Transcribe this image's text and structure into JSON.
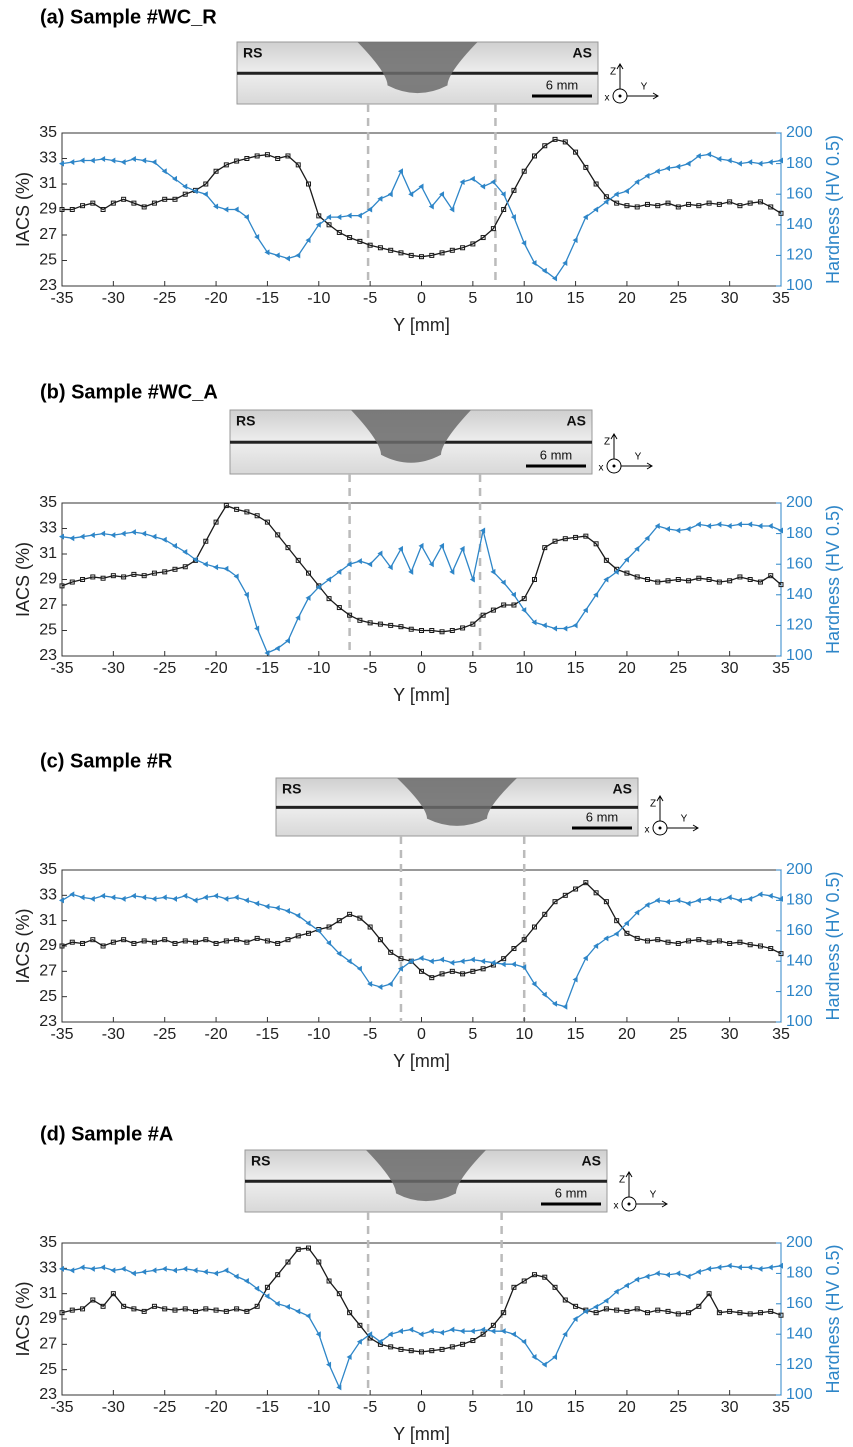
{
  "chart_data": [
    {
      "type": "line",
      "title": "(a) Sample #WC_R",
      "image_labels": {
        "left": "RS",
        "right": "AS",
        "scale": "6 mm",
        "z": "Z",
        "y": "Y",
        "x": "x"
      },
      "xlabel": "Y [mm]",
      "ylabel": "IACS (%)",
      "y2label": "Hardness (HV 0.5)",
      "xlim": [
        -35,
        35
      ],
      "xticks": [
        -35,
        -30,
        -25,
        -20,
        -15,
        -10,
        -5,
        0,
        5,
        10,
        15,
        20,
        25,
        30,
        35
      ],
      "ylim": [
        23,
        35
      ],
      "yticks": [
        23,
        25,
        27,
        29,
        31,
        33,
        35
      ],
      "y2lim": [
        100,
        200
      ],
      "y2ticks": [
        100,
        120,
        140,
        160,
        180,
        200
      ],
      "vlines": [
        -5.2,
        7.2
      ],
      "x": [
        -35,
        -34,
        -33,
        -32,
        -31,
        -30,
        -29,
        -28,
        -27,
        -26,
        -25,
        -24,
        -23,
        -22,
        -21,
        -20,
        -19,
        -18,
        -17,
        -16,
        -15,
        -14,
        -13,
        -12,
        -11,
        -10,
        -9,
        -8,
        -7,
        -6,
        -5,
        -4,
        -3,
        -2,
        -1,
        0,
        1,
        2,
        3,
        4,
        5,
        6,
        7,
        8,
        9,
        10,
        11,
        12,
        13,
        14,
        15,
        16,
        17,
        18,
        19,
        20,
        21,
        22,
        23,
        24,
        25,
        26,
        27,
        28,
        29,
        30,
        31,
        32,
        33,
        34,
        35
      ],
      "series": [
        {
          "color": "#1a1a1a",
          "marker": "square",
          "values": [
            29,
            29,
            29.3,
            29.5,
            29,
            29.5,
            29.8,
            29.5,
            29.2,
            29.5,
            29.8,
            29.8,
            30.2,
            30.5,
            31,
            32,
            32.5,
            32.8,
            33,
            33.2,
            33.3,
            33,
            33.2,
            32.5,
            31,
            28.5,
            27.8,
            27.2,
            26.8,
            26.5,
            26.2,
            26,
            25.8,
            25.6,
            25.4,
            25.3,
            25.4,
            25.6,
            25.8,
            26,
            26.3,
            26.8,
            27.5,
            29,
            30.5,
            32,
            33.2,
            34,
            34.5,
            34.3,
            33.5,
            32.3,
            31,
            30,
            29.5,
            29.3,
            29.2,
            29.4,
            29.3,
            29.5,
            29.2,
            29.4,
            29.3,
            29.5,
            29.4,
            29.6,
            29.3,
            29.5,
            29.6,
            29.2,
            28.7
          ]
        },
        {
          "color": "#2e86c8",
          "marker": "triangle",
          "axis": "y2",
          "values": [
            180,
            181,
            182,
            182,
            183,
            182,
            181,
            183,
            182,
            181,
            175,
            170,
            165,
            162,
            160,
            152,
            150,
            150,
            145,
            132,
            122,
            120,
            118,
            120,
            130,
            140,
            145,
            145,
            146,
            146,
            150,
            157,
            160,
            175,
            160,
            165,
            152,
            160,
            150,
            168,
            170,
            165,
            168,
            160,
            145,
            128,
            115,
            110,
            105,
            115,
            130,
            145,
            150,
            155,
            160,
            162,
            168,
            172,
            175,
            177,
            178,
            180,
            185,
            186,
            183,
            182,
            180,
            181,
            180,
            181,
            182
          ]
        }
      ]
    },
    {
      "type": "line",
      "title": "(b) Sample #WC_A",
      "image_labels": {
        "left": "RS",
        "right": "AS",
        "scale": "6 mm",
        "z": "Z",
        "y": "Y",
        "x": "x"
      },
      "xlabel": "Y [mm]",
      "ylabel": "IACS (%)",
      "y2label": "Hardness (HV 0.5)",
      "xlim": [
        -35,
        35
      ],
      "xticks": [
        -35,
        -30,
        -25,
        -20,
        -15,
        -10,
        -5,
        0,
        5,
        10,
        15,
        20,
        25,
        30,
        35
      ],
      "ylim": [
        23,
        35
      ],
      "yticks": [
        23,
        25,
        27,
        29,
        31,
        33,
        35
      ],
      "y2lim": [
        100,
        200
      ],
      "y2ticks": [
        100,
        120,
        140,
        160,
        180,
        200
      ],
      "vlines": [
        -7,
        5.7
      ],
      "x": [
        -35,
        -34,
        -33,
        -32,
        -31,
        -30,
        -29,
        -28,
        -27,
        -26,
        -25,
        -24,
        -23,
        -22,
        -21,
        -20,
        -19,
        -18,
        -17,
        -16,
        -15,
        -14,
        -13,
        -12,
        -11,
        -10,
        -9,
        -8,
        -7,
        -6,
        -5,
        -4,
        -3,
        -2,
        -1,
        0,
        1,
        2,
        3,
        4,
        5,
        6,
        7,
        8,
        9,
        10,
        11,
        12,
        13,
        14,
        15,
        16,
        17,
        18,
        19,
        20,
        21,
        22,
        23,
        24,
        25,
        26,
        27,
        28,
        29,
        30,
        31,
        32,
        33,
        34,
        35
      ],
      "series": [
        {
          "color": "#1a1a1a",
          "marker": "square",
          "values": [
            28.5,
            28.8,
            29,
            29.2,
            29.1,
            29.3,
            29.2,
            29.4,
            29.3,
            29.5,
            29.6,
            29.8,
            30,
            30.5,
            32,
            33.5,
            34.8,
            34.5,
            34.3,
            34,
            33.5,
            32.5,
            31.5,
            30.5,
            29.5,
            28.5,
            27.5,
            26.8,
            26.2,
            25.8,
            25.6,
            25.5,
            25.4,
            25.3,
            25.1,
            25,
            25,
            24.9,
            25,
            25.2,
            25.5,
            26.2,
            26.6,
            27,
            27,
            27.5,
            29,
            31.5,
            32,
            32.2,
            32.3,
            32.4,
            31.8,
            30.5,
            29.8,
            29.5,
            29.2,
            29,
            28.8,
            28.9,
            29,
            28.9,
            29.1,
            29,
            28.8,
            28.9,
            29.2,
            29,
            28.8,
            29.3,
            28.6
          ]
        },
        {
          "color": "#2e86c8",
          "marker": "triangle",
          "axis": "y2",
          "values": [
            178,
            177,
            178,
            179,
            180,
            179,
            180,
            181,
            180,
            178,
            176,
            172,
            168,
            163,
            160,
            158,
            157,
            152,
            140,
            118,
            102,
            105,
            110,
            125,
            138,
            145,
            150,
            155,
            160,
            162,
            160,
            167,
            158,
            170,
            155,
            172,
            160,
            172,
            155,
            170,
            150,
            182,
            155,
            148,
            140,
            130,
            122,
            120,
            118,
            118,
            120,
            130,
            140,
            150,
            155,
            163,
            170,
            177,
            185,
            183,
            182,
            183,
            186,
            185,
            186,
            185,
            186,
            186,
            185,
            185,
            182
          ]
        }
      ]
    },
    {
      "type": "line",
      "title": "(c) Sample #R",
      "image_labels": {
        "left": "RS",
        "right": "AS",
        "scale": "6 mm",
        "z": "Z",
        "y": "Y",
        "x": "x"
      },
      "xlabel": "Y [mm]",
      "ylabel": "IACS (%)",
      "y2label": "Hardness (HV 0.5)",
      "xlim": [
        -35,
        35
      ],
      "xticks": [
        -35,
        -30,
        -25,
        -20,
        -15,
        -10,
        -5,
        0,
        5,
        10,
        15,
        20,
        25,
        30,
        35
      ],
      "ylim": [
        23,
        35
      ],
      "yticks": [
        23,
        25,
        27,
        29,
        31,
        33,
        35
      ],
      "y2lim": [
        100,
        200
      ],
      "y2ticks": [
        100,
        120,
        140,
        160,
        180,
        200
      ],
      "vlines": [
        -2,
        10
      ],
      "x": [
        -35,
        -34,
        -33,
        -32,
        -31,
        -30,
        -29,
        -28,
        -27,
        -26,
        -25,
        -24,
        -23,
        -22,
        -21,
        -20,
        -19,
        -18,
        -17,
        -16,
        -15,
        -14,
        -13,
        -12,
        -11,
        -10,
        -9,
        -8,
        -7,
        -6,
        -5,
        -4,
        -3,
        -2,
        -1,
        0,
        1,
        2,
        3,
        4,
        5,
        6,
        7,
        8,
        9,
        10,
        11,
        12,
        13,
        14,
        15,
        16,
        17,
        18,
        19,
        20,
        21,
        22,
        23,
        24,
        25,
        26,
        27,
        28,
        29,
        30,
        31,
        32,
        33,
        34,
        35
      ],
      "series": [
        {
          "color": "#1a1a1a",
          "marker": "square",
          "values": [
            29,
            29.3,
            29.2,
            29.5,
            29,
            29.3,
            29.5,
            29.2,
            29.4,
            29.3,
            29.5,
            29.2,
            29.4,
            29.3,
            29.5,
            29.2,
            29.4,
            29.5,
            29.3,
            29.6,
            29.4,
            29.2,
            29.5,
            29.8,
            30,
            30.3,
            30.5,
            31,
            31.5,
            31.2,
            30.5,
            29.5,
            28.5,
            28,
            27.8,
            27,
            26.5,
            26.8,
            27,
            26.8,
            27,
            27.2,
            27.5,
            28,
            28.8,
            29.5,
            30.5,
            31.5,
            32.5,
            33,
            33.5,
            34,
            33.2,
            32.5,
            31,
            30,
            29.6,
            29.4,
            29.5,
            29.3,
            29.2,
            29.4,
            29.5,
            29.3,
            29.4,
            29.2,
            29.3,
            29.1,
            29,
            28.8,
            28.4
          ]
        },
        {
          "color": "#2e86c8",
          "marker": "triangle",
          "axis": "y2",
          "values": [
            180,
            184,
            182,
            181,
            183,
            182,
            181,
            183,
            182,
            181,
            182,
            181,
            183,
            180,
            182,
            183,
            181,
            182,
            180,
            178,
            176,
            175,
            173,
            170,
            165,
            160,
            152,
            145,
            140,
            135,
            125,
            123,
            125,
            135,
            140,
            142,
            140,
            141,
            139,
            140,
            141,
            140,
            139,
            138,
            138,
            136,
            125,
            118,
            112,
            110,
            128,
            142,
            150,
            155,
            158,
            165,
            172,
            177,
            180,
            179,
            180,
            178,
            180,
            181,
            180,
            182,
            180,
            181,
            184,
            183,
            181
          ]
        }
      ]
    },
    {
      "type": "line",
      "title": "(d) Sample #A",
      "image_labels": {
        "left": "RS",
        "right": "AS",
        "scale": "6 mm",
        "z": "Z",
        "y": "Y",
        "x": "x"
      },
      "xlabel": "Y [mm]",
      "ylabel": "IACS (%)",
      "y2label": "Hardness (HV 0.5)",
      "xlim": [
        -35,
        35
      ],
      "xticks": [
        -35,
        -30,
        -25,
        -20,
        -15,
        -10,
        -5,
        0,
        5,
        10,
        15,
        20,
        25,
        30,
        35
      ],
      "ylim": [
        23,
        35
      ],
      "yticks": [
        23,
        25,
        27,
        29,
        31,
        33,
        35
      ],
      "y2lim": [
        100,
        200
      ],
      "y2ticks": [
        100,
        120,
        140,
        160,
        180,
        200
      ],
      "vlines": [
        -5.2,
        7.8
      ],
      "x": [
        -35,
        -34,
        -33,
        -32,
        -31,
        -30,
        -29,
        -28,
        -27,
        -26,
        -25,
        -24,
        -23,
        -22,
        -21,
        -20,
        -19,
        -18,
        -17,
        -16,
        -15,
        -14,
        -13,
        -12,
        -11,
        -10,
        -9,
        -8,
        -7,
        -6,
        -5,
        -4,
        -3,
        -2,
        -1,
        0,
        1,
        2,
        3,
        4,
        5,
        6,
        7,
        8,
        9,
        10,
        11,
        12,
        13,
        14,
        15,
        16,
        17,
        18,
        19,
        20,
        21,
        22,
        23,
        24,
        25,
        26,
        27,
        28,
        29,
        30,
        31,
        32,
        33,
        34,
        35
      ],
      "series": [
        {
          "color": "#1a1a1a",
          "marker": "square",
          "values": [
            29.5,
            29.7,
            29.8,
            30.5,
            30,
            31,
            30,
            29.8,
            29.6,
            30,
            29.8,
            29.7,
            29.8,
            29.6,
            29.8,
            29.7,
            29.6,
            29.8,
            29.6,
            30,
            31.5,
            32.5,
            33.5,
            34.5,
            34.6,
            33.5,
            32,
            31,
            29.5,
            28.5,
            27.5,
            27,
            26.8,
            26.6,
            26.5,
            26.4,
            26.5,
            26.6,
            26.8,
            27,
            27.3,
            27.8,
            28.5,
            29.5,
            31.5,
            32,
            32.5,
            32.3,
            31.5,
            30.5,
            30,
            29.7,
            29.5,
            29.8,
            29.7,
            29.6,
            29.8,
            29.5,
            29.7,
            29.6,
            29.4,
            29.5,
            30,
            31,
            29.5,
            29.6,
            29.5,
            29.4,
            29.5,
            29.6,
            29.3
          ]
        },
        {
          "color": "#2e86c8",
          "marker": "triangle",
          "axis": "y2",
          "values": [
            183,
            182,
            184,
            183,
            184,
            182,
            183,
            180,
            181,
            182,
            183,
            182,
            183,
            182,
            181,
            180,
            182,
            178,
            175,
            170,
            165,
            160,
            158,
            155,
            152,
            140,
            120,
            105,
            125,
            135,
            140,
            135,
            140,
            142,
            143,
            140,
            142,
            141,
            143,
            142,
            142,
            143,
            142,
            142,
            140,
            135,
            125,
            120,
            125,
            140,
            150,
            155,
            158,
            162,
            168,
            172,
            176,
            178,
            180,
            179,
            180,
            178,
            181,
            183,
            184,
            185,
            184,
            184,
            183,
            184,
            185
          ]
        }
      ]
    }
  ]
}
